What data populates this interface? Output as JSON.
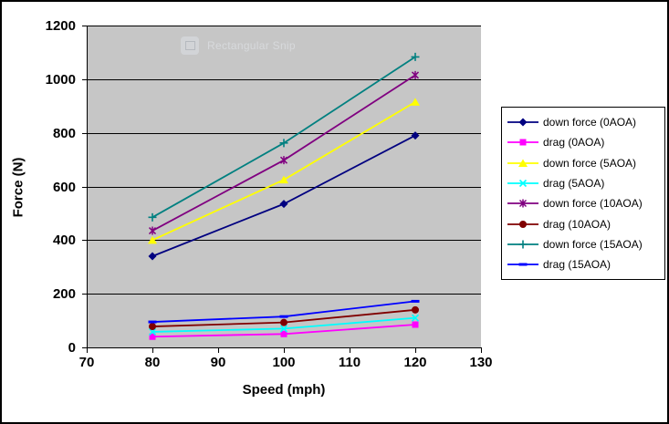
{
  "watermark": {
    "label": "Rectangular Snip"
  },
  "chart_data": {
    "type": "line",
    "title": "",
    "xlabel": "Speed (mph)",
    "ylabel": "Force (N)",
    "x": [
      80,
      100,
      120
    ],
    "xlim": [
      70,
      130
    ],
    "ylim": [
      0,
      1200
    ],
    "x_ticks": [
      70,
      80,
      90,
      100,
      110,
      120,
      130
    ],
    "y_ticks": [
      0,
      200,
      400,
      600,
      800,
      1000,
      1200
    ],
    "grid": true,
    "legend_position": "right",
    "plot_bg_color": "#c6c6c6",
    "series": [
      {
        "name": "down force (0AOA)",
        "color": "#000080",
        "marker": "diamond",
        "values": [
          340,
          535,
          790
        ]
      },
      {
        "name": "drag (0AOA)",
        "color": "#ff00ff",
        "marker": "square",
        "values": [
          40,
          50,
          85
        ]
      },
      {
        "name": "down force (5AOA)",
        "color": "#ffff00",
        "marker": "triangle",
        "values": [
          400,
          625,
          915
        ]
      },
      {
        "name": "drag (5AOA)",
        "color": "#00ffff",
        "marker": "x",
        "values": [
          58,
          70,
          110
        ]
      },
      {
        "name": "down force (10AOA)",
        "color": "#800080",
        "marker": "star",
        "values": [
          435,
          698,
          1015
        ]
      },
      {
        "name": "drag (10AOA)",
        "color": "#800000",
        "marker": "circle",
        "values": [
          78,
          93,
          140
        ]
      },
      {
        "name": "down force (15AOA)",
        "color": "#008080",
        "marker": "plus",
        "values": [
          485,
          762,
          1083
        ]
      },
      {
        "name": "drag (15AOA)",
        "color": "#0000ff",
        "marker": "dash",
        "values": [
          95,
          115,
          172
        ]
      }
    ]
  }
}
